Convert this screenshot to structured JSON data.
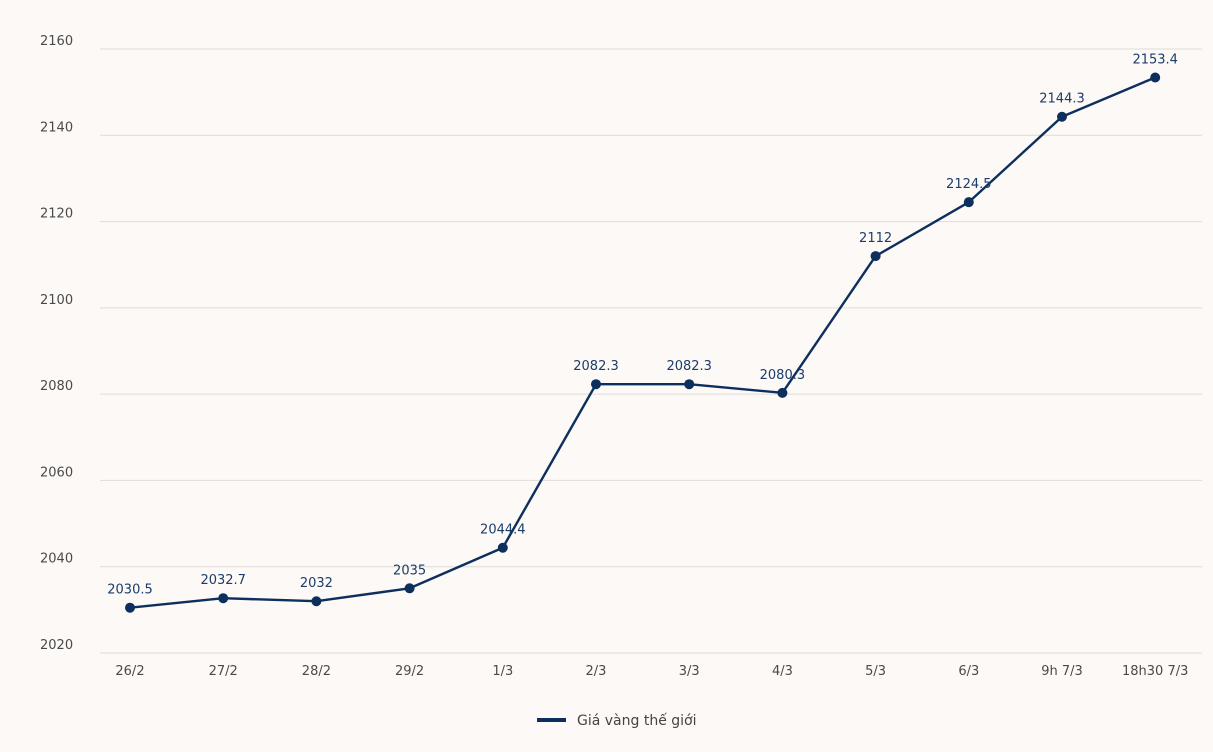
{
  "chart_data": {
    "type": "line",
    "categories": [
      "26/2",
      "27/2",
      "28/2",
      "29/2",
      "1/3",
      "2/3",
      "3/3",
      "4/3",
      "5/3",
      "6/3",
      "9h 7/3",
      "18h30 7/3"
    ],
    "series": [
      {
        "name": "Giá vàng thế giới",
        "values": [
          2030.5,
          2032.7,
          2032,
          2035,
          2044.4,
          2082.3,
          2082.3,
          2080.3,
          2112,
          2124.5,
          2144.3,
          2153.4
        ],
        "labels": [
          "2030.5",
          "2032.7",
          "2032",
          "2035",
          "2044.4",
          "2082.3",
          "2082.3",
          "2080.3",
          "2112",
          "2124.5",
          "2144.3",
          "2153.4"
        ],
        "color": "#0d2f5e"
      }
    ],
    "yticks": [
      "2020",
      "2040",
      "2060",
      "2080",
      "2100",
      "2120",
      "2140",
      "2160"
    ],
    "ylim": [
      2020,
      2160
    ],
    "grid": true,
    "legend_position": "bottom-center"
  }
}
